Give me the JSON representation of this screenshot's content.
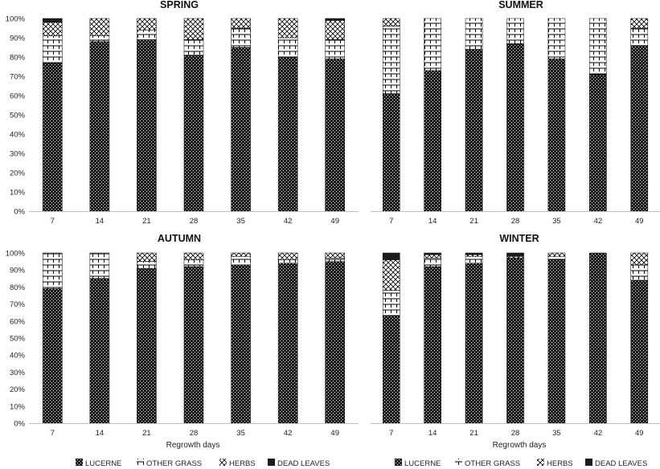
{
  "figure": {
    "x_axis_title": "Regrowth days",
    "legend": [
      {
        "name": "LUCERNE",
        "pattern": "lucerne"
      },
      {
        "name": "OTHER GRASS",
        "pattern": "grass"
      },
      {
        "name": "HERBS",
        "pattern": "herbs"
      },
      {
        "name": "DEAD LEAVES",
        "pattern": "dead"
      }
    ]
  },
  "chart_data": [
    {
      "type": "bar",
      "stacked": "percent",
      "title": "SPRING",
      "categories": [
        "7",
        "14",
        "21",
        "28",
        "35",
        "42",
        "49"
      ],
      "xlabel": "",
      "ylim": [
        0,
        100
      ],
      "yticks": [
        "0%",
        "10%",
        "20%",
        "30%",
        "40%",
        "50%",
        "60%",
        "70%",
        "80%",
        "90%",
        "100%"
      ],
      "series": [
        {
          "name": "LUCERNE",
          "values": [
            77,
            88,
            89,
            81,
            85,
            80,
            79
          ]
        },
        {
          "name": "OTHER GRASS",
          "values": [
            14,
            3,
            5,
            8,
            10,
            10,
            10
          ]
        },
        {
          "name": "HERBS",
          "values": [
            7,
            9,
            6,
            11,
            5,
            10,
            10
          ]
        },
        {
          "name": "DEAD LEAVES",
          "values": [
            2,
            0,
            0,
            0,
            0,
            0,
            1
          ]
        }
      ]
    },
    {
      "type": "bar",
      "stacked": "percent",
      "title": "SUMMER",
      "categories": [
        "7",
        "14",
        "21",
        "28",
        "35",
        "42",
        "49"
      ],
      "xlabel": "",
      "ylim": [
        0,
        100
      ],
      "yticks": [],
      "series": [
        {
          "name": "LUCERNE",
          "values": [
            61,
            73,
            84,
            87,
            79,
            71,
            86
          ]
        },
        {
          "name": "OTHER GRASS",
          "values": [
            35,
            27,
            16,
            13,
            21,
            29,
            9
          ]
        },
        {
          "name": "HERBS",
          "values": [
            4,
            0,
            0,
            0,
            0,
            0,
            5
          ]
        },
        {
          "name": "DEAD LEAVES",
          "values": [
            0,
            0,
            0,
            0,
            0,
            0,
            0
          ]
        }
      ]
    },
    {
      "type": "bar",
      "stacked": "percent",
      "title": "AUTUMN",
      "categories": [
        "7",
        "14",
        "21",
        "28",
        "35",
        "42",
        "49"
      ],
      "xlabel": "Regrowth days",
      "ylim": [
        0,
        100
      ],
      "yticks": [
        "0%",
        "10%",
        "20%",
        "30%",
        "40%",
        "50%",
        "60%",
        "70%",
        "80%",
        "90%",
        "100%"
      ],
      "series": [
        {
          "name": "LUCERNE",
          "values": [
            79,
            85,
            91,
            92,
            93,
            94,
            95
          ]
        },
        {
          "name": "OTHER GRASS",
          "values": [
            21,
            15,
            4,
            4,
            5,
            2,
            2
          ]
        },
        {
          "name": "HERBS",
          "values": [
            0,
            0,
            5,
            4,
            2,
            4,
            3
          ]
        },
        {
          "name": "DEAD LEAVES",
          "values": [
            0,
            0,
            0,
            0,
            0,
            0,
            0
          ]
        }
      ]
    },
    {
      "type": "bar",
      "stacked": "percent",
      "title": "WINTER",
      "categories": [
        "7",
        "14",
        "21",
        "28",
        "35",
        "42",
        "49"
      ],
      "xlabel": "Regrowth days",
      "ylim": [
        0,
        100
      ],
      "yticks": [],
      "series": [
        {
          "name": "LUCERNE",
          "values": [
            63,
            92,
            94,
            97,
            96,
            100,
            84
          ]
        },
        {
          "name": "OTHER GRASS",
          "values": [
            15,
            5,
            4,
            0,
            2,
            0,
            9
          ]
        },
        {
          "name": "HERBS",
          "values": [
            18,
            2,
            1,
            1,
            2,
            0,
            7
          ]
        },
        {
          "name": "DEAD LEAVES",
          "values": [
            4,
            1,
            1,
            2,
            0,
            0,
            0
          ]
        }
      ]
    }
  ]
}
